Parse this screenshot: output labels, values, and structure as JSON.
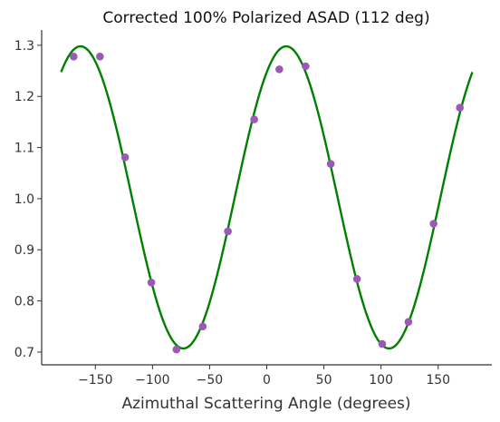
{
  "chart_data": {
    "type": "scatter",
    "title": "Corrected 100% Polarized ASAD (112 deg)",
    "xlabel": "Azimuthal Scattering Angle (degrees)",
    "ylabel": "",
    "xlim": [
      -197,
      197
    ],
    "ylim": [
      0.675,
      1.33
    ],
    "xticks": [
      -150,
      -100,
      -50,
      0,
      50,
      100,
      150
    ],
    "yticks": [
      0.7,
      0.8,
      0.9,
      1.0,
      1.1,
      1.2,
      1.3
    ],
    "xtick_labels": [
      "−150",
      "−100",
      "−50",
      "0",
      "50",
      "100",
      "150"
    ],
    "ytick_labels": [
      "0.7",
      "0.8",
      "0.9",
      "1.0",
      "1.1",
      "1.2",
      "1.3"
    ],
    "grid": false,
    "series": [
      {
        "kind": "points",
        "color": "#9b59b6",
        "x": [
          -169,
          -146,
          -124,
          -101,
          -79,
          -56,
          -34,
          -11,
          11,
          34,
          56,
          79,
          101,
          124,
          146,
          169
        ],
        "y": [
          1.278,
          1.278,
          1.081,
          0.836,
          0.705,
          0.75,
          0.936,
          1.155,
          1.253,
          1.259,
          1.068,
          0.843,
          0.716,
          0.759,
          0.951,
          1.178
        ]
      },
      {
        "kind": "fit",
        "color": "#008000",
        "x_range": [
          -180,
          180
        ],
        "mean": 1.0025,
        "amplitude": 0.2955,
        "phase_deg": 17
      }
    ]
  }
}
